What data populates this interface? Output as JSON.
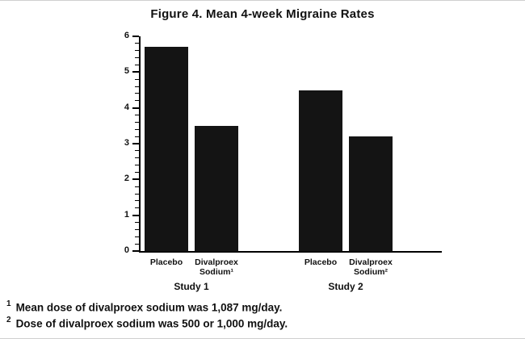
{
  "title": "Figure 4. Mean 4-week Migraine Rates",
  "chart_data": {
    "type": "bar",
    "title": "Figure 4. Mean 4-week Migraine Rates",
    "ylim": [
      0,
      6
    ],
    "yticks": [
      0,
      1,
      2,
      3,
      4,
      5,
      6
    ],
    "minor_tick_step": 0.2,
    "grid": false,
    "bar_color": "#141414",
    "groups": [
      {
        "label": "Study 1",
        "bars": [
          {
            "label": "Placebo",
            "value": 5.7
          },
          {
            "label": "Divalproex\nSodium¹",
            "value": 3.5
          }
        ]
      },
      {
        "label": "Study 2",
        "bars": [
          {
            "label": "Placebo",
            "value": 4.5
          },
          {
            "label": "Divalproex\nSodium²",
            "value": 3.2
          }
        ]
      }
    ]
  },
  "footnotes": [
    {
      "marker": "1",
      "text": "Mean dose of divalproex sodium was 1,087 mg/day."
    },
    {
      "marker": "2",
      "text": "Dose of divalproex sodium was 500 or 1,000 mg/day."
    }
  ]
}
